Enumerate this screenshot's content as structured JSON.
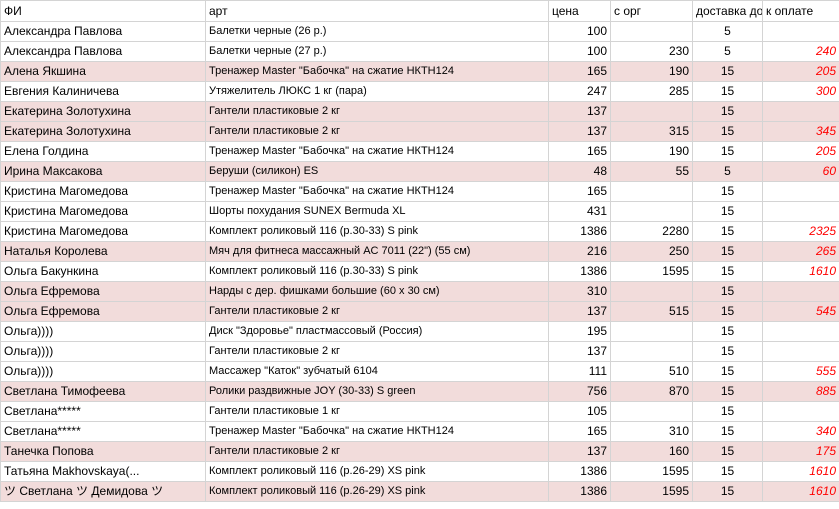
{
  "table": {
    "headers": {
      "name": "ФИ",
      "item": "арт",
      "price": "цена",
      "org": "с орг",
      "delivery": "доставка до ТК",
      "pay": "к оплате"
    },
    "rows": [
      {
        "name": "Александра Павлова",
        "item": "Балетки черные (26 р.)",
        "price": 100,
        "org": null,
        "delivery": 5,
        "pay": null,
        "highlight": false
      },
      {
        "name": "Александра Павлова",
        "item": "Балетки черные (27 р.)",
        "price": 100,
        "org": 230,
        "delivery": 5,
        "pay": 240,
        "highlight": false
      },
      {
        "name": "Алена Якшина",
        "item": "Тренажер Master \"Бабочка\" на сжатие НКТН124",
        "price": 165,
        "org": 190,
        "delivery": 15,
        "pay": 205,
        "highlight": true
      },
      {
        "name": "Евгения Калиничева",
        "item": "Утяжелитель ЛЮКС 1 кг (пара)",
        "price": 247,
        "org": 285,
        "delivery": 15,
        "pay": 300,
        "highlight": false
      },
      {
        "name": "Екатерина Золотухина",
        "item": "Гантели пластиковые 2 кг",
        "price": 137,
        "org": null,
        "delivery": 15,
        "pay": null,
        "highlight": true
      },
      {
        "name": "Екатерина Золотухина",
        "item": "Гантели пластиковые 2 кг",
        "price": 137,
        "org": 315,
        "delivery": 15,
        "pay": 345,
        "highlight": true
      },
      {
        "name": "Елена Голдина",
        "item": "Тренажер Master \"Бабочка\" на сжатие НКТН124",
        "price": 165,
        "org": 190,
        "delivery": 15,
        "pay": 205,
        "highlight": false
      },
      {
        "name": "Ирина Максакова",
        "item": "Беруши (силикон) ES",
        "price": 48,
        "org": 55,
        "delivery": 5,
        "pay": 60,
        "highlight": true
      },
      {
        "name": "Кристина Магомедова",
        "item": "Тренажер Master \"Бабочка\" на сжатие НКТН124",
        "price": 165,
        "org": null,
        "delivery": 15,
        "pay": null,
        "highlight": false
      },
      {
        "name": "Кристина Магомедова",
        "item": "Шорты похудания SUNEX Bermuda XL",
        "price": 431,
        "org": null,
        "delivery": 15,
        "pay": null,
        "highlight": false
      },
      {
        "name": "Кристина Магомедова",
        "item": "Комплект роликовый 116 (р.30-33) S pink",
        "price": 1386,
        "org": 2280,
        "delivery": 15,
        "pay": 2325,
        "highlight": false
      },
      {
        "name": "Наталья Королева",
        "item": "Мяч для фитнеса массажный AC 7011 (22\") (55 см)",
        "price": 216,
        "org": 250,
        "delivery": 15,
        "pay": 265,
        "highlight": true
      },
      {
        "name": "Ольга Бакункина",
        "item": "Комплект роликовый 116 (р.30-33) S pink",
        "price": 1386,
        "org": 1595,
        "delivery": 15,
        "pay": 1610,
        "highlight": false
      },
      {
        "name": "Ольга Ефремова",
        "item": "Нарды с дер. фишками большие (60 х 30 см)",
        "price": 310,
        "org": null,
        "delivery": 15,
        "pay": null,
        "highlight": true
      },
      {
        "name": "Ольга Ефремова",
        "item": "Гантели пластиковые 2 кг",
        "price": 137,
        "org": 515,
        "delivery": 15,
        "pay": 545,
        "highlight": true
      },
      {
        "name": "Ольга))))",
        "item": "Диск \"Здоровье\" пластмассовый (Россия)",
        "price": 195,
        "org": null,
        "delivery": 15,
        "pay": null,
        "highlight": false
      },
      {
        "name": "Ольга))))",
        "item": "Гантели пластиковые 2 кг",
        "price": 137,
        "org": null,
        "delivery": 15,
        "pay": null,
        "highlight": false
      },
      {
        "name": "Ольга))))",
        "item": "Массажер \"Каток\" зубчатый 6104",
        "price": 111,
        "org": 510,
        "delivery": 15,
        "pay": 555,
        "highlight": false
      },
      {
        "name": "Светлана Тимофеева",
        "item": "Ролики раздвижные JOY (30-33) S green",
        "price": 756,
        "org": 870,
        "delivery": 15,
        "pay": 885,
        "highlight": true
      },
      {
        "name": "Светлана*****",
        "item": "Гантели пластиковые 1 кг",
        "price": 105,
        "org": null,
        "delivery": 15,
        "pay": null,
        "highlight": false
      },
      {
        "name": "Светлана*****",
        "item": "Тренажер Master \"Бабочка\" на сжатие НКТН124",
        "price": 165,
        "org": 310,
        "delivery": 15,
        "pay": 340,
        "highlight": false
      },
      {
        "name": "Танечка Попова",
        "item": "Гантели пластиковые 2 кг",
        "price": 137,
        "org": 160,
        "delivery": 15,
        "pay": 175,
        "highlight": true
      },
      {
        "name": "Татьяна Makhovskaya(...",
        "item": "Комплект роликовый 116 (р.26-29) XS pink",
        "price": 1386,
        "org": 1595,
        "delivery": 15,
        "pay": 1610,
        "highlight": false
      },
      {
        "name": "ツ Светлана ツ Демидова ツ",
        "item": "Комплект роликовый 116 (р.26-29) XS pink",
        "price": 1386,
        "org": 1595,
        "delivery": 15,
        "pay": 1610,
        "highlight": true
      }
    ]
  }
}
